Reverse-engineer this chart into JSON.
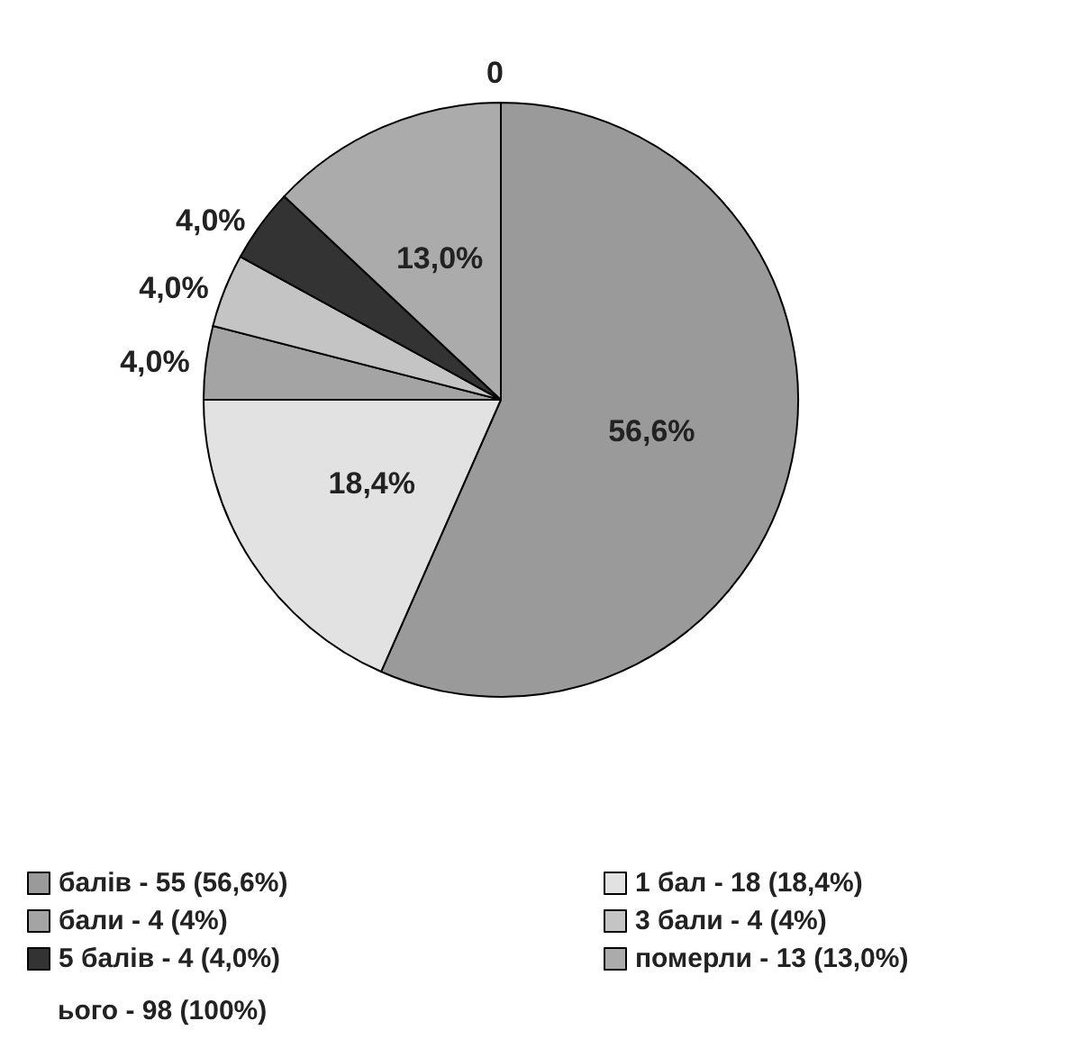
{
  "chart_data": {
    "type": "pie",
    "categories": [
      "балів - 55 (56,6%)",
      "1 бал - 18 (18,4%)",
      "бали - 4 (4%)",
      "3 бали - 4 (4%)",
      "5 балів - 4 (4,0%)",
      "померли - 13 (13,0%)"
    ],
    "values": [
      56.6,
      18.4,
      4.0,
      4.0,
      4.0,
      13.0
    ],
    "value_labels": [
      "56,6%",
      "18,4%",
      "4,0%",
      "4,0%",
      "4,0%",
      "13,0%"
    ],
    "colors": [
      "#9a9a9a",
      "#e2e2e2",
      "#a4a4a4",
      "#c4c4c4",
      "#333333",
      "#ababab"
    ],
    "annotations": [
      "0",
      "ього - 98 (100%)"
    ],
    "legend": "bottom"
  }
}
